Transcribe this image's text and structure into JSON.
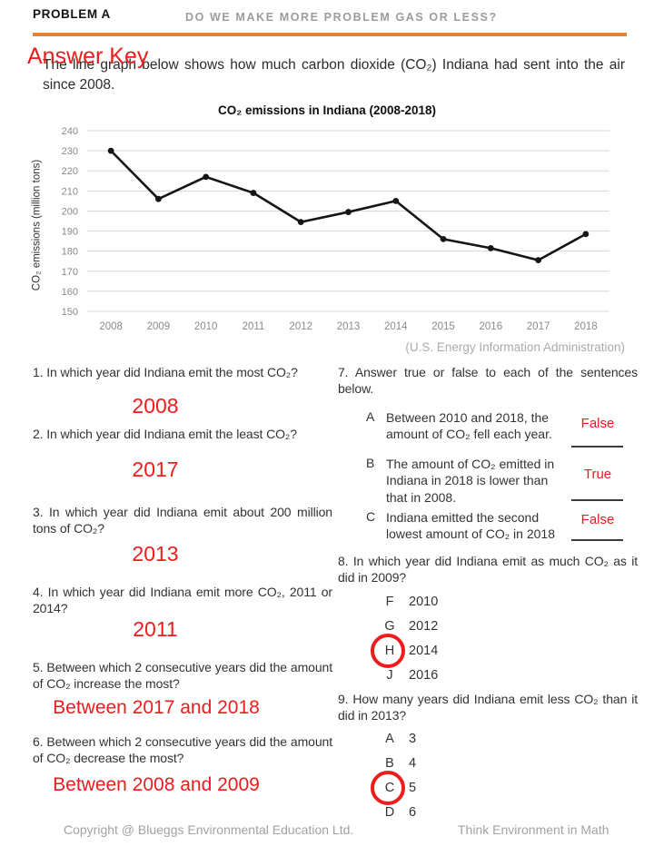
{
  "colors": {
    "accent_orange": "#E8802D",
    "answer_red": "#EE1C1C"
  },
  "header": {
    "problem_label": "PROBLEM A",
    "title": "DO WE MAKE MORE PROBLEM GAS OR LESS?"
  },
  "answer_key_label": "Answer Key",
  "intro": "The line graph below shows how much carbon dioxide (CO₂) Indiana had sent into the air since 2008.",
  "chart_data": {
    "type": "line",
    "title": "CO₂ emissions in Indiana (2008-2018)",
    "ylabel": "CO₂ emissions (million tons)",
    "source": "(U.S. Energy Information Administration)",
    "categories": [
      "2008",
      "2009",
      "2010",
      "2011",
      "2012",
      "2013",
      "2014",
      "2015",
      "2016",
      "2017",
      "2018"
    ],
    "values": [
      230,
      206,
      217,
      209,
      194.5,
      199.5,
      205,
      186,
      181.5,
      175.5,
      188.5
    ],
    "ylim": [
      150,
      240
    ],
    "ytick_step": 10,
    "grid": true,
    "legend": false,
    "line_color": "#151515",
    "grid_color": "#D8D8D8",
    "tick_color": "#8a8a8a"
  },
  "questions_left": {
    "q1": {
      "text": "1. In which year did Indiana emit the most CO₂?",
      "answer": "2008"
    },
    "q2": {
      "text": "2. In which year did Indiana emit the least CO₂?",
      "answer": "2017"
    },
    "q3": {
      "text": "3. In which year did Indiana emit about 200 million tons of CO₂?",
      "answer": "2013"
    },
    "q4": {
      "text": "4. In which year did Indiana emit more CO₂, 2011 or 2014?",
      "answer": "2011"
    },
    "q5": {
      "text": "5. Between which 2 consecutive years did the amount of CO₂ increase the most?",
      "answer": "Between 2017 and 2018"
    },
    "q6": {
      "text": "6. Between which 2 consecutive years did the amount of CO₂ decrease the most?",
      "answer": "Between 2008 and 2009"
    }
  },
  "questions_right": {
    "q7": {
      "text": "7. Answer true or false to each of the sentences below.",
      "items": {
        "a": {
          "letter": "A",
          "text": "Between 2010 and 2018, the amount of CO₂ fell each year.",
          "answer": "False"
        },
        "b": {
          "letter": "B",
          "text": "The amount of CO₂ emitted in Indiana in 2018 is lower than that in 2008.",
          "answer": "True"
        },
        "c": {
          "letter": "C",
          "text": "Indiana emitted the second lowest amount of CO₂ in 2018",
          "answer": "False"
        }
      }
    },
    "q8": {
      "text": "8. In which year did Indiana emit as much CO₂ as it did in 2009?",
      "options": {
        "f": {
          "letter": "F",
          "value": "2010",
          "circled": false
        },
        "g": {
          "letter": "G",
          "value": "2012",
          "circled": false
        },
        "h": {
          "letter": "H",
          "value": "2014",
          "circled": true
        },
        "j": {
          "letter": "J",
          "value": "2016",
          "circled": false
        }
      }
    },
    "q9": {
      "text": "9. How many years did Indiana emit less CO₂ than it did in 2013?",
      "options": {
        "a": {
          "letter": "A",
          "value": "3",
          "circled": false
        },
        "b": {
          "letter": "B",
          "value": "4",
          "circled": false
        },
        "c": {
          "letter": "C",
          "value": "5",
          "circled": true
        },
        "d": {
          "letter": "D",
          "value": "6",
          "circled": false
        }
      }
    }
  },
  "footer": {
    "copyright": "Copyright @ Blueggs Environmental Education Ltd.",
    "tagline": "Think Environment in Math"
  }
}
